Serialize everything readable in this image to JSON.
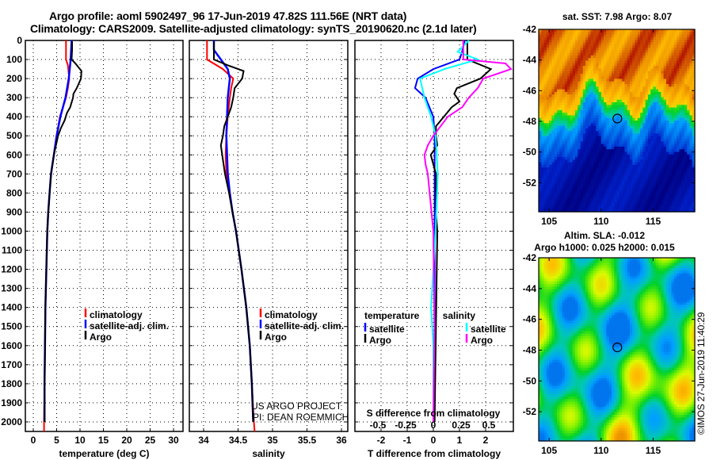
{
  "titles": {
    "line1": "Argo profile: aoml 5902497_96 17-Jun-2019 47.82S 111.56E (NRT data)",
    "line2": "Climatology: CARS2009. Satellite-adjusted climatology: synTS_20190620.nc (2.1d later)"
  },
  "colors": {
    "climatology": "#ff0000",
    "satellite": "#0000ff",
    "argo": "#000000",
    "sal_satellite": "#00ffff",
    "sal_argo": "#ff00ff"
  },
  "chart_data": [
    {
      "type": "line",
      "id": "temperature",
      "xlabel": "temperature (deg C)",
      "ylabel": "",
      "xlim": [
        -1.5,
        32
      ],
      "ylim": [
        2050,
        0
      ],
      "xticks": [
        0,
        5,
        10,
        15,
        20,
        25,
        30
      ],
      "yticks": [
        0,
        100,
        200,
        300,
        400,
        500,
        600,
        700,
        800,
        900,
        1000,
        1100,
        1200,
        1300,
        1400,
        1500,
        1600,
        1700,
        1800,
        1900,
        2000
      ],
      "grid": true,
      "legend_position": "center-right",
      "legend": [
        "climatology",
        "satellite-adj. clim.",
        "Argo"
      ],
      "series": [
        {
          "name": "climatology",
          "color": "#ff0000",
          "depth": [
            0,
            100,
            130,
            200,
            250,
            300,
            400,
            500,
            600,
            700,
            800,
            900,
            1000,
            1200,
            1400,
            1600,
            1800,
            2000,
            2050
          ],
          "values": [
            7.0,
            7.0,
            7.4,
            7.7,
            7.4,
            7.0,
            5.7,
            5.0,
            4.4,
            3.8,
            3.5,
            3.2,
            3.0,
            2.8,
            2.6,
            2.5,
            2.4,
            2.3,
            2.3
          ]
        },
        {
          "name": "satellite-adj. clim.",
          "color": "#0000ff",
          "depth": [
            0,
            100,
            200,
            300,
            400,
            500,
            600,
            700,
            800,
            900,
            1000,
            1200,
            1400,
            1600,
            1800,
            2000
          ],
          "values": [
            8.2,
            8.0,
            7.6,
            6.9,
            5.8,
            5.0,
            4.4,
            3.8,
            3.5,
            3.2,
            3.0,
            2.8,
            2.6,
            2.5,
            2.4,
            2.4
          ]
        },
        {
          "name": "Argo",
          "color": "#000000",
          "depth": [
            5,
            50,
            100,
            120,
            160,
            200,
            250,
            280,
            300,
            350,
            380,
            420,
            460,
            500,
            600,
            700,
            800,
            900,
            1000,
            1200,
            1400,
            1600,
            1800,
            2000
          ],
          "values": [
            8.3,
            8.3,
            8.2,
            9.0,
            10.3,
            10.2,
            9.3,
            8.6,
            8.5,
            7.9,
            7.2,
            6.7,
            5.9,
            5.3,
            4.4,
            3.8,
            3.5,
            3.2,
            3.0,
            2.8,
            2.6,
            2.5,
            2.4,
            2.4
          ]
        }
      ]
    },
    {
      "type": "line",
      "id": "salinity",
      "xlabel": "salinity",
      "xlim": [
        33.8,
        36.1
      ],
      "ylim": [
        2050,
        0
      ],
      "xticks": [
        34,
        34.5,
        35,
        35.5,
        36
      ],
      "xticklabels": [
        "34",
        "34.5",
        "35",
        "35.5",
        "36"
      ],
      "grid": true,
      "legend_position": "center-right",
      "legend": [
        "climatology",
        "satellite-adj. clim.",
        "Argo"
      ],
      "annotation": [
        "US ARGO PROJECT",
        "PI: DEAN ROEMMICH"
      ],
      "series": [
        {
          "name": "climatology",
          "color": "#ff0000",
          "depth": [
            0,
            100,
            150,
            200,
            250,
            300,
            400,
            500,
            600,
            700,
            800,
            900,
            1000,
            1200,
            1400,
            1600,
            1800,
            2000,
            2050
          ],
          "values": [
            34.05,
            34.05,
            34.28,
            34.43,
            34.4,
            34.38,
            34.35,
            34.33,
            34.32,
            34.33,
            34.37,
            34.42,
            34.47,
            34.55,
            34.62,
            34.67,
            34.7,
            34.73,
            34.74
          ]
        },
        {
          "name": "satellite-adj. clim.",
          "color": "#0000ff",
          "depth": [
            0,
            50,
            100,
            150,
            200,
            300,
            400,
            500,
            600,
            700,
            800,
            900,
            1000,
            1200,
            1400,
            1600,
            1800,
            2000
          ],
          "values": [
            34.15,
            34.15,
            34.25,
            34.35,
            34.38,
            34.35,
            34.34,
            34.33,
            34.34,
            34.35,
            34.38,
            34.42,
            34.47,
            34.55,
            34.62,
            34.67,
            34.7,
            34.72
          ]
        },
        {
          "name": "Argo",
          "color": "#000000",
          "depth": [
            5,
            100,
            130,
            160,
            200,
            250,
            300,
            350,
            400,
            450,
            500,
            550,
            600,
            700,
            800,
            900,
            1000,
            1200,
            1400,
            1600,
            1800,
            2000
          ],
          "values": [
            34.15,
            34.15,
            34.35,
            34.58,
            34.56,
            34.45,
            34.43,
            34.4,
            34.35,
            34.3,
            34.28,
            34.25,
            34.27,
            34.31,
            34.37,
            34.42,
            34.47,
            34.55,
            34.62,
            34.67,
            34.7,
            34.72
          ]
        }
      ]
    },
    {
      "type": "line",
      "id": "differences",
      "xlabel": "T difference from climatology",
      "xlabel2": "S difference from climatology",
      "xlim": [
        -3,
        3
      ],
      "ylim": [
        2050,
        0
      ],
      "xticks": [
        -2,
        -1,
        0,
        1,
        2
      ],
      "xticks2": [
        -0.5,
        -0.25,
        0,
        0.25,
        0.5
      ],
      "xticklabels2": [
        "-0.5",
        "-0.25",
        "0",
        "0.25",
        "0.5"
      ],
      "grid": true,
      "legend_position": "center",
      "legend_headers": [
        "temperature",
        "salinity"
      ],
      "legend": [
        "satellite",
        "Argo",
        "satellite",
        "Argo"
      ],
      "series": [
        {
          "name": "temperature satellite",
          "color": "#0000ff",
          "depth": [
            0,
            60,
            100,
            150,
            200,
            250,
            300,
            400,
            500,
            600,
            800,
            1000,
            2000
          ],
          "values": [
            1.2,
            1.1,
            1.0,
            0.0,
            -0.6,
            -0.7,
            -0.3,
            0.0,
            0.05,
            0.05,
            0.05,
            0.05,
            0.05
          ]
        },
        {
          "name": "temperature Argo",
          "color": "#000000",
          "depth": [
            0,
            60,
            100,
            150,
            200,
            250,
            280,
            320,
            350,
            400,
            450,
            500,
            550,
            600,
            700,
            900,
            1000,
            2000
          ],
          "values": [
            1.3,
            1.3,
            1.3,
            2.2,
            1.8,
            0.9,
            0.8,
            1.0,
            0.7,
            0.4,
            0.1,
            0.1,
            0.15,
            -0.1,
            0.1,
            0.1,
            0.15,
            0.05
          ]
        },
        {
          "name": "salinity satellite",
          "color": "#00ffff",
          "depth": [
            0,
            60,
            100,
            150,
            200,
            300,
            400,
            500,
            700,
            1000,
            1200,
            1400,
            1600,
            2000
          ],
          "values": [
            0.32,
            0.22,
            0.4,
            0.1,
            -0.12,
            -0.08,
            -0.02,
            0.02,
            0.04,
            0.02,
            0.0,
            -0.02,
            0.0,
            0.0
          ]
        },
        {
          "name": "salinity Argo",
          "color": "#ff00ff",
          "depth": [
            0,
            100,
            120,
            150,
            200,
            250,
            300,
            350,
            400,
            500,
            550,
            600,
            650,
            700,
            1000,
            1500,
            2000
          ],
          "values": [
            0.27,
            0.27,
            0.65,
            0.7,
            0.45,
            0.4,
            0.32,
            0.26,
            0.13,
            0.0,
            -0.05,
            -0.08,
            -0.07,
            -0.05,
            0.0,
            0.01,
            0.0
          ]
        }
      ]
    },
    {
      "type": "heatmap",
      "id": "sst-map",
      "title": "sat. SST: 7.98 Argo: 8.07",
      "xlim": [
        104,
        119
      ],
      "ylim": [
        -53.9,
        -42
      ],
      "xticks": [
        105,
        110,
        115
      ],
      "yticks": [
        -42,
        -44,
        -46,
        -48,
        -50,
        -52
      ],
      "marker": {
        "lon": 111.56,
        "lat": -47.82
      }
    },
    {
      "type": "heatmap",
      "id": "sla-map",
      "title": "Altim. SLA: -0.012",
      "subtitle": "Argo h1000: 0.025 h2000: 0.015",
      "xlim": [
        104,
        119
      ],
      "ylim": [
        -53.9,
        -42
      ],
      "xticks": [
        105,
        110,
        115
      ],
      "yticks": [
        -42,
        -44,
        -46,
        -48,
        -50,
        -52
      ],
      "marker": {
        "lon": 111.56,
        "lat": -47.82
      }
    }
  ],
  "footer": {
    "credit": "©IMOS 27-Jun-2019 11:40:29"
  }
}
